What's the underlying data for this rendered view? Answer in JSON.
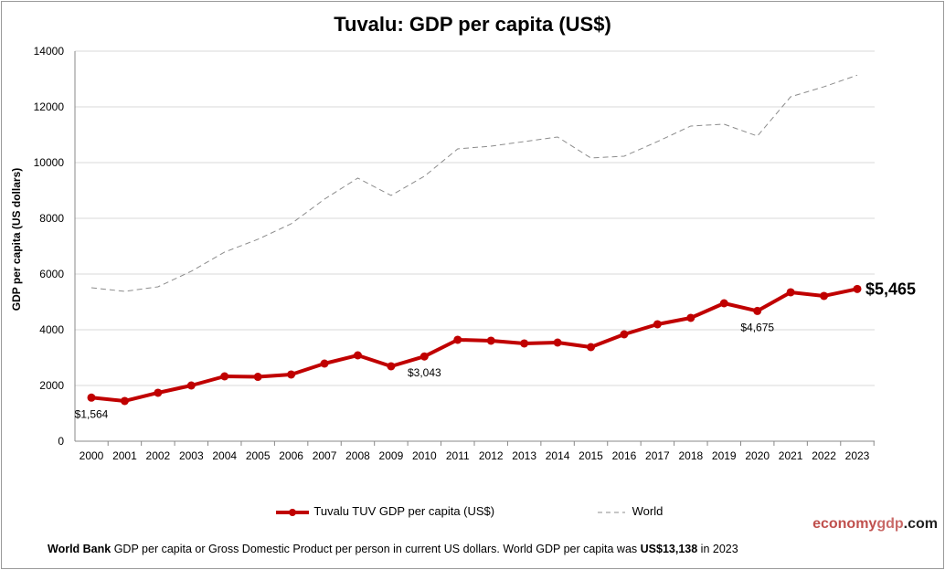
{
  "chart_data": {
    "type": "line",
    "title": "Tuvalu: GDP per capita (US$)",
    "ylabel": "GDP per capita (US dollars)",
    "xlabel": "",
    "ylim": [
      0,
      14000
    ],
    "yticks": [
      0,
      2000,
      4000,
      6000,
      8000,
      10000,
      12000,
      14000
    ],
    "grid": true,
    "legend_position": "bottom",
    "categories": [
      "2000",
      "2001",
      "2002",
      "2003",
      "2004",
      "2005",
      "2006",
      "2007",
      "2008",
      "2009",
      "2010",
      "2011",
      "2012",
      "2013",
      "2014",
      "2015",
      "2016",
      "2017",
      "2018",
      "2019",
      "2020",
      "2021",
      "2022",
      "2023"
    ],
    "series": [
      {
        "name": "Tuvalu TUV GDP per capita (US$)",
        "color": "#c00000",
        "style": "solid-markers",
        "values": [
          1564,
          1443,
          1738,
          2000,
          2328,
          2310,
          2394,
          2787,
          3082,
          2689,
          3043,
          3640,
          3607,
          3509,
          3541,
          3377,
          3836,
          4197,
          4427,
          4951,
          4675,
          5345,
          5214,
          5465
        ]
      },
      {
        "name": "World",
        "color": "#8c8c8c",
        "style": "dashed",
        "values": [
          5509,
          5378,
          5542,
          6099,
          6788,
          7247,
          7804,
          8689,
          9444,
          8820,
          9509,
          10493,
          10591,
          10755,
          10919,
          10165,
          10230,
          10755,
          11313,
          11378,
          10952,
          12362,
          12723,
          13138
        ]
      }
    ],
    "annotations": [
      {
        "year": "2000",
        "text": "$1,564"
      },
      {
        "year": "2010",
        "text": "$3,043"
      },
      {
        "year": "2020",
        "text": "$4,675"
      },
      {
        "year": "2023",
        "text": "$5,465"
      }
    ]
  },
  "brand": {
    "part1": "economy",
    "part2": "gdp",
    "part3": ".com"
  },
  "footer": {
    "source": "World Bank",
    "text": " GDP per capita or Gross Domestic Product per person  in current US dollars.   World GDP per capita was ",
    "value": "US$13,138",
    "tail": "  in 2023"
  }
}
